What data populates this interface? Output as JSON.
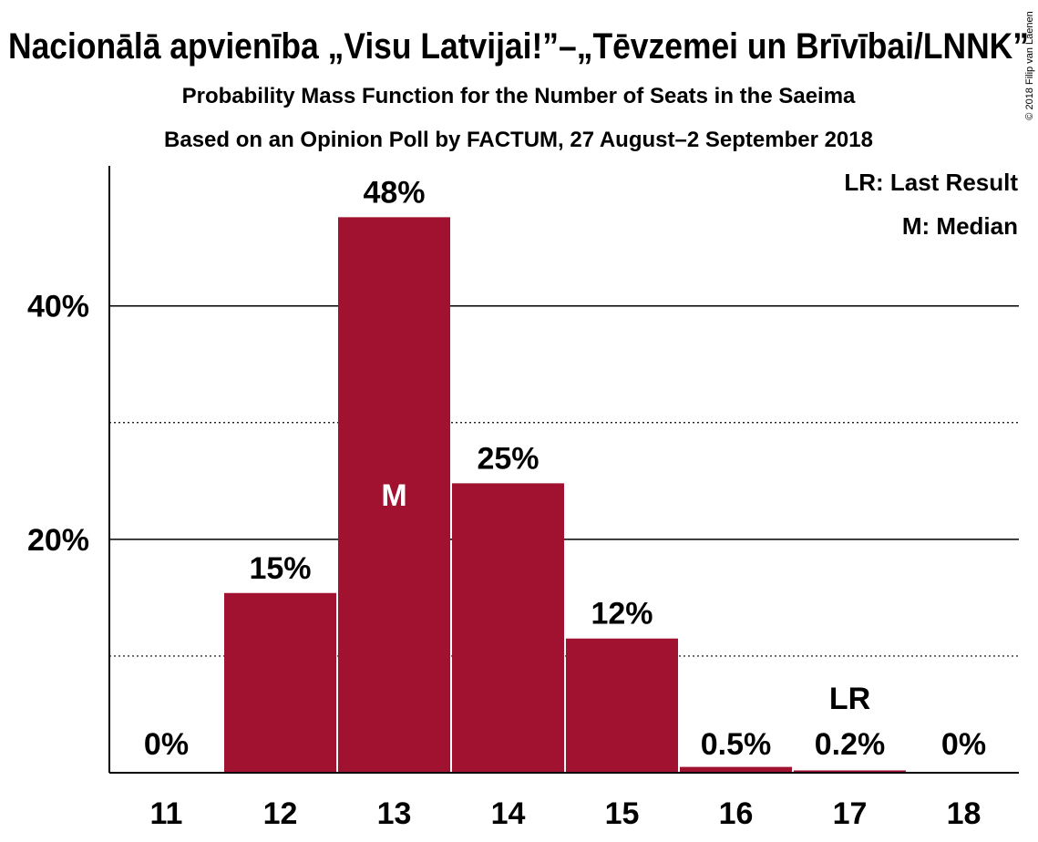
{
  "chart_data": {
    "type": "bar",
    "title": "Nacionālā apvienība „Visu Latvijai!”–„Tēvzemei un Brīvībai/LNNK”",
    "subtitle_line1": "Probability Mass Function for the Number of Seats in the Saeima",
    "subtitle_line2": "Based on an Opinion Poll by FACTUM, 27 August–2 September 2018",
    "copyright": "© 2018 Filip van Laenen",
    "legend": [
      "LR: Last Result",
      "M: Median"
    ],
    "legend_placement": "top-right",
    "categories": [
      "11",
      "12",
      "13",
      "14",
      "15",
      "16",
      "17",
      "18"
    ],
    "values": [
      0,
      15.4,
      47.6,
      24.8,
      11.5,
      0.5,
      0.2,
      0
    ],
    "value_labels": [
      "0%",
      "15%",
      "48%",
      "25%",
      "12%",
      "0.5%",
      "0.2%",
      "0%"
    ],
    "median_category": "13",
    "median_label": "M",
    "last_result_category": "17",
    "last_result_label": "LR",
    "y_ticks": [
      {
        "value": 20,
        "label": "20%"
      },
      {
        "value": 40,
        "label": "40%"
      }
    ],
    "minor_gridlines": [
      10,
      30
    ],
    "ylim": [
      0,
      52
    ],
    "bar_color": "#A0122F",
    "grid": true
  }
}
